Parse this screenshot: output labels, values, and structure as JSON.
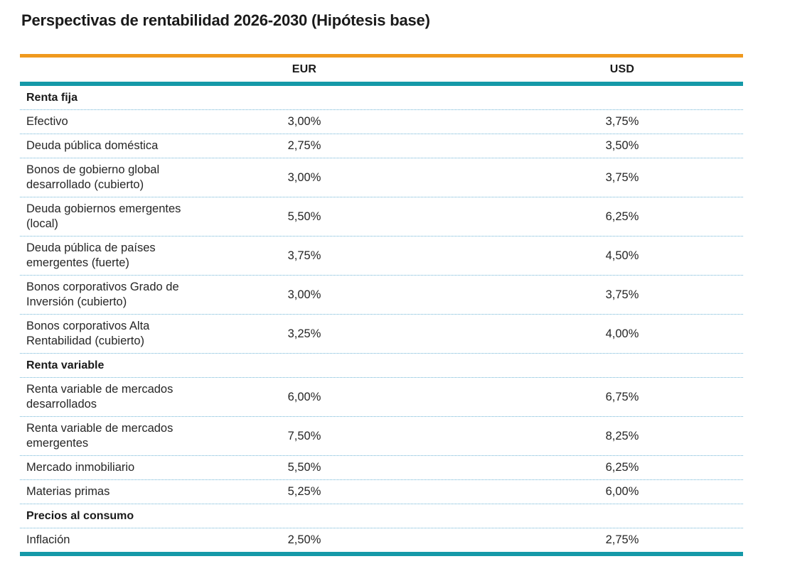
{
  "title": "Perspectivas de rentabilidad 2026-2030 (Hipótesis base)",
  "table": {
    "columns": [
      "EUR",
      "USD"
    ],
    "sections": [
      {
        "label": "Renta fija",
        "rows": [
          {
            "label": "Efectivo",
            "eur": "3,00%",
            "usd": "3,75%"
          },
          {
            "label": "Deuda pública doméstica",
            "eur": "2,75%",
            "usd": "3,50%"
          },
          {
            "label": "Bonos de gobierno global desarrollado (cubierto)",
            "eur": "3,00%",
            "usd": "3,75%"
          },
          {
            "label": "Deuda gobiernos emergentes (local)",
            "eur": "5,50%",
            "usd": "6,25%"
          },
          {
            "label": "Deuda pública de países emergentes (fuerte)",
            "eur": "3,75%",
            "usd": "4,50%"
          },
          {
            "label": "Bonos corporativos Grado de Inversión (cubierto)",
            "eur": "3,00%",
            "usd": "3,75%"
          },
          {
            "label": "Bonos corporativos Alta Rentabilidad (cubierto)",
            "eur": "3,25%",
            "usd": "4,00%"
          }
        ]
      },
      {
        "label": "Renta variable",
        "rows": [
          {
            "label": "Renta variable de mercados desarrollados",
            "eur": "6,00%",
            "usd": "6,75%"
          },
          {
            "label": "Renta variable de mercados emergentes",
            "eur": "7,50%",
            "usd": "8,25%"
          },
          {
            "label": "Mercado inmobiliario",
            "eur": "5,50%",
            "usd": "6,25%"
          },
          {
            "label": "Materias primas",
            "eur": "5,25%",
            "usd": "6,00%"
          }
        ]
      },
      {
        "label": "Precios al consumo",
        "rows": [
          {
            "label": "Inflación",
            "eur": "2,50%",
            "usd": "2,75%"
          }
        ]
      }
    ]
  },
  "colors": {
    "accent_orange": "#F0991E",
    "accent_teal": "#1599A8",
    "row_separator_blue": "#6FB5D6",
    "text": "#262626"
  }
}
